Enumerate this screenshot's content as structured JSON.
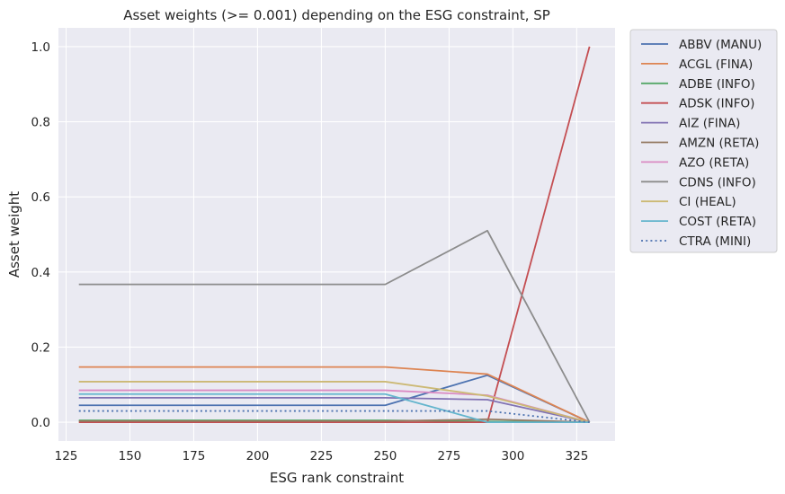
{
  "chart_data": {
    "type": "line",
    "title": "Asset weights (>= 0.001) depending on the ESG constraint, SP",
    "xlabel": "ESG rank constraint",
    "ylabel": "Asset weight",
    "xlim": [
      122,
      340
    ],
    "ylim": [
      -0.05,
      1.05
    ],
    "xticks": [
      125,
      150,
      175,
      200,
      225,
      250,
      275,
      300,
      325
    ],
    "yticks": [
      0.0,
      0.2,
      0.4,
      0.6,
      0.8,
      1.0
    ],
    "x": [
      130,
      250,
      290,
      330
    ],
    "grid": true,
    "legend_position": "outside-top-right",
    "colors": {
      "background": "#eaeaf2",
      "grid": "#ffffff",
      "text": "#262626"
    },
    "series": [
      {
        "name": "ABBV (MANU)",
        "color": "#4c72b0",
        "dash": "solid",
        "values": [
          0.045,
          0.045,
          0.125,
          0.0
        ]
      },
      {
        "name": "ACGL (FINA)",
        "color": "#dd8452",
        "dash": "solid",
        "values": [
          0.147,
          0.147,
          0.128,
          0.0
        ]
      },
      {
        "name": "ADBE (INFO)",
        "color": "#55a868",
        "dash": "solid",
        "values": [
          0.005,
          0.005,
          0.002,
          0.0
        ]
      },
      {
        "name": "ADSK (INFO)",
        "color": "#c44e52",
        "dash": "solid",
        "values": [
          0.0,
          0.0,
          0.0,
          1.0
        ]
      },
      {
        "name": "AIZ (FINA)",
        "color": "#8172b3",
        "dash": "solid",
        "values": [
          0.065,
          0.065,
          0.06,
          0.0
        ]
      },
      {
        "name": "AMZN (RETA)",
        "color": "#937860",
        "dash": "solid",
        "values": [
          0.003,
          0.003,
          0.008,
          0.0
        ]
      },
      {
        "name": "AZO (RETA)",
        "color": "#da8bc3",
        "dash": "solid",
        "values": [
          0.085,
          0.085,
          0.072,
          0.0
        ]
      },
      {
        "name": "CDNS (INFO)",
        "color": "#8c8c8c",
        "dash": "solid",
        "values": [
          0.367,
          0.367,
          0.51,
          0.0
        ]
      },
      {
        "name": "CI (HEAL)",
        "color": "#ccb974",
        "dash": "solid",
        "values": [
          0.108,
          0.108,
          0.07,
          0.0
        ]
      },
      {
        "name": "COST (RETA)",
        "color": "#64b5cd",
        "dash": "solid",
        "values": [
          0.075,
          0.075,
          0.0,
          0.0
        ]
      },
      {
        "name": "CTRA (MINI)",
        "color": "#4c72b0",
        "dash": "dotted",
        "values": [
          0.03,
          0.03,
          0.03,
          0.0
        ]
      }
    ]
  }
}
